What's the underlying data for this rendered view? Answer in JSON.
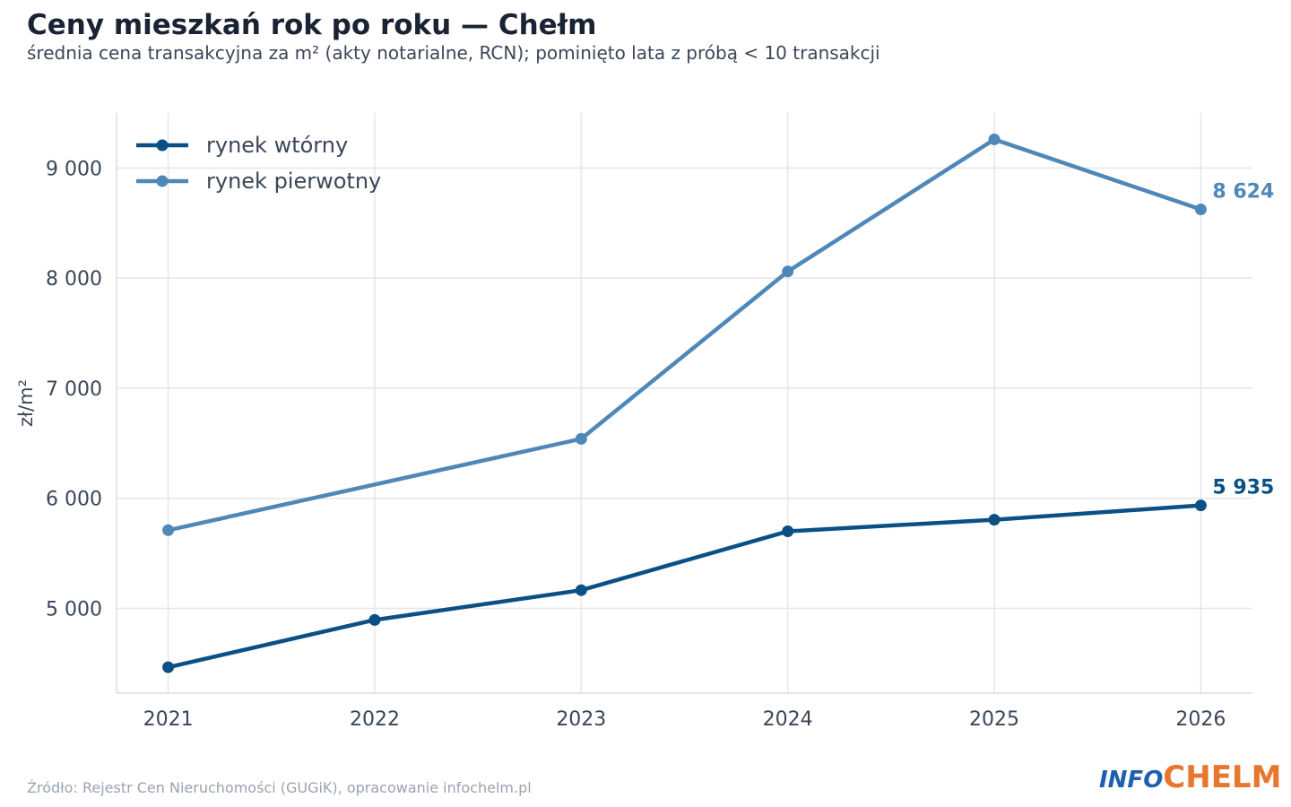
{
  "chart_data": {
    "type": "line",
    "title": "Ceny mieszkań rok po roku — Chełm",
    "subtitle": "średnia cena transakcyjna za m² (akty notarialne, RCN); pominięto lata z próbą < 10 transakcji",
    "xlabel": "",
    "ylabel": "zł/m²",
    "x": [
      2021,
      2022,
      2023,
      2024,
      2025,
      2026
    ],
    "xlim": [
      2020.75,
      2026.25
    ],
    "ylim": [
      4230,
      9500
    ],
    "yticks": [
      5000,
      6000,
      7000,
      8000,
      9000
    ],
    "ytick_labels": [
      "5 000",
      "6 000",
      "7 000",
      "8 000",
      "9 000"
    ],
    "grid": true,
    "legend_position": "top-left",
    "series": [
      {
        "name": "rynek wtórny",
        "color": "#0b5085",
        "values": [
          4465,
          4895,
          5165,
          5700,
          5805,
          5935
        ],
        "end_label": "5 935"
      },
      {
        "name": "rynek pierwotny",
        "color": "#4f88b8",
        "values": [
          5710,
          null,
          6540,
          8060,
          9260,
          8624
        ],
        "end_label": "8 624"
      }
    ]
  },
  "footer": {
    "source": "Źródło: Rejestr Cen Nieruchomości (GUGiK), opracowanie infochelm.pl",
    "brand_part1": "INFO",
    "brand_part2": "CHELM"
  },
  "colors": {
    "grid": "#e6e6e6",
    "axis": "#dedede",
    "text": "#3b4657",
    "brand_blue": "#1f5fb0",
    "brand_orange": "#e8772e"
  }
}
